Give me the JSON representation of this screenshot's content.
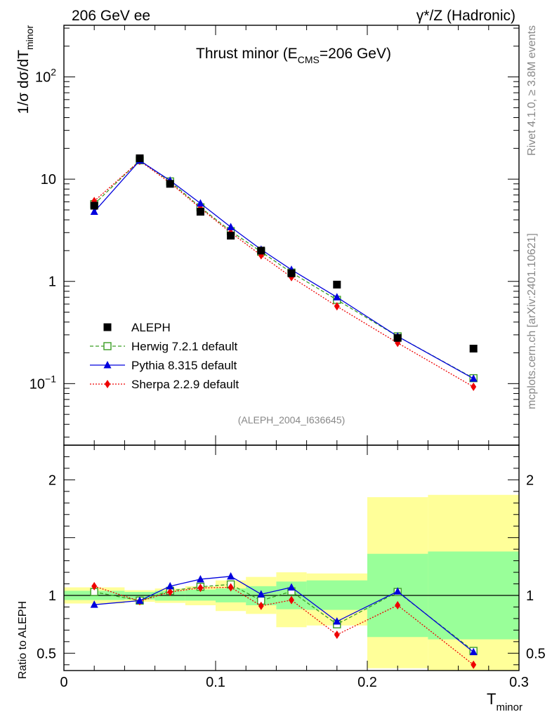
{
  "header": {
    "left": "206 GeV ee",
    "right_prefix": "γ*/Z",
    "right_suffix": " (Hadronic)"
  },
  "side": {
    "rivet": "Rivet 4.1.0, ≥ 3.8M events",
    "mcplots": "mcplots.cern.ch [arXiv:2401.10621]"
  },
  "chart_data": {
    "type": "line",
    "title": "Thrust minor (E",
    "title_sub": "CMS",
    "title_rest": "=206 GeV)",
    "analysis_id": "(ALEPH_2004_I636645)",
    "ylabel_main": "1/σ  dσ/dT",
    "ylabel_main_sub": "minor",
    "ylabel_ratio": "Ratio to ALEPH",
    "xlabel": "T",
    "xlabel_sub": "minor",
    "xlim": [
      0,
      0.3
    ],
    "ylim_main": [
      0.025,
      320
    ],
    "yscale_main": "log",
    "ylim_ratio": [
      0.35,
      2.3
    ],
    "x_ticks": [
      {
        "v": 0,
        "label": "0"
      },
      {
        "v": 0.1,
        "label": "0.1"
      },
      {
        "v": 0.2,
        "label": "0.2"
      },
      {
        "v": 0.3,
        "label": "0.3"
      }
    ],
    "y_ticks_main": [
      {
        "v": 0.1,
        "base": "10",
        "exp": "−1"
      },
      {
        "v": 1,
        "base": "1",
        "exp": ""
      },
      {
        "v": 10,
        "base": "10",
        "exp": ""
      },
      {
        "v": 100,
        "base": "10",
        "exp": "2"
      }
    ],
    "y_ticks_ratio": [
      {
        "v": 0.5,
        "label": "0.5"
      },
      {
        "v": 1,
        "label": "1"
      },
      {
        "v": 2,
        "label": "2"
      }
    ],
    "x": [
      0.02,
      0.05,
      0.07,
      0.09,
      0.11,
      0.13,
      0.15,
      0.18,
      0.22,
      0.27
    ],
    "bin_edges": [
      0.0,
      0.04,
      0.06,
      0.08,
      0.1,
      0.12,
      0.14,
      0.16,
      0.2,
      0.24,
      0.3
    ],
    "band_inner": [
      [
        0.96,
        1.04
      ],
      [
        0.965,
        1.03
      ],
      [
        0.955,
        1.04
      ],
      [
        0.955,
        1.05
      ],
      [
        0.94,
        1.06
      ],
      [
        0.915,
        1.08
      ],
      [
        0.88,
        1.12
      ],
      [
        0.875,
        1.13
      ],
      [
        0.64,
        1.36
      ],
      [
        0.62,
        1.38
      ]
    ],
    "band_outer": [
      [
        0.93,
        1.07
      ],
      [
        0.945,
        1.045
      ],
      [
        0.935,
        1.06
      ],
      [
        0.915,
        1.08
      ],
      [
        0.865,
        1.13
      ],
      [
        0.84,
        1.16
      ],
      [
        0.725,
        1.2
      ],
      [
        0.74,
        1.19
      ],
      [
        0.37,
        1.85
      ],
      [
        0.35,
        1.87
      ]
    ],
    "series": [
      {
        "name": "ALEPH",
        "style": "data",
        "marker": "square",
        "color": "#000000",
        "values": [
          5.5,
          16.0,
          9.0,
          4.8,
          2.8,
          2.0,
          1.2,
          0.93,
          0.28,
          0.22
        ],
        "ratio": [
          1,
          1,
          1,
          1,
          1,
          1,
          1,
          1,
          1,
          1
        ]
      },
      {
        "name": "Herwig 7.2.1 default",
        "style": "dashed",
        "marker": "open-square",
        "color": "#3a9d23",
        "values": [
          5.7,
          15.3,
          9.5,
          5.3,
          3.1,
          1.95,
          1.22,
          0.66,
          0.29,
          0.113
        ],
        "ratio": [
          1.03,
          0.955,
          1.04,
          1.075,
          1.095,
          0.955,
          1.035,
          0.75,
          1.03,
          0.52
        ]
      },
      {
        "name": "Pythia 8.315 default",
        "style": "solid",
        "marker": "triangle",
        "color": "#0000dd",
        "values": [
          4.8,
          15.2,
          9.7,
          5.8,
          3.4,
          2.05,
          1.3,
          0.7,
          0.29,
          0.112
        ],
        "ratio": [
          0.92,
          0.955,
          1.08,
          1.14,
          1.165,
          1.01,
          1.07,
          0.775,
          1.035,
          0.51
        ]
      },
      {
        "name": "Sherpa 2.2.9 default",
        "style": "dotted",
        "marker": "diamond",
        "color": "#ee0000",
        "values": [
          6.1,
          15.1,
          9.2,
          5.2,
          3.0,
          1.8,
          1.1,
          0.57,
          0.25,
          0.093
        ],
        "ratio": [
          1.08,
          0.95,
          1.03,
          1.065,
          1.07,
          0.91,
          0.96,
          0.66,
          0.915,
          0.4
        ]
      }
    ]
  }
}
